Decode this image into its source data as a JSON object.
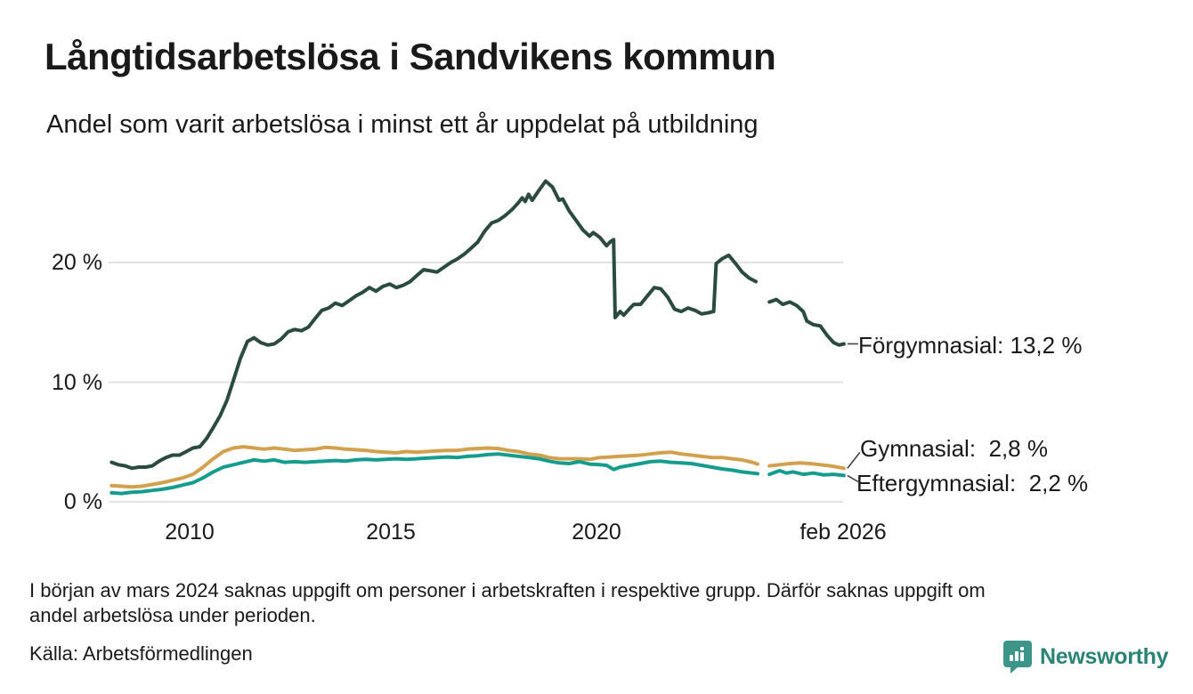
{
  "title": "Långtidsarbetslösa i Sandvikens kommun",
  "subtitle": "Andel som varit arbetslösa i minst ett år uppdelat på utbildning",
  "footnote_lines": [
    "I början av mars 2024 saknas uppgift om personer i arbetskraften i respektive grupp. Därför saknas uppgift om",
    "andel arbetslösa under perioden."
  ],
  "source": "Källa: Arbetsförmedlingen",
  "branding": {
    "logo_text": "Newsworthy",
    "logo_text_color": "#2B8276",
    "logo_icon_color": "#3D9488"
  },
  "colors": {
    "text": "#1a1a1a",
    "gridline": "#E2E2E2",
    "connector": "#444444",
    "background": "#ffffff"
  },
  "chart_data": {
    "type": "line",
    "title": "Långtidsarbetslösa i Sandvikens kommun",
    "subtitle": "Andel som varit arbetslösa i minst ett år uppdelat på utbildning",
    "xlabel": "",
    "ylabel": "",
    "unit": "%",
    "grid": "horizontal-only",
    "legend_position": "right-end-labels",
    "x_axis": {
      "ticks": [
        "2010",
        "2015",
        "2020",
        "feb 2026"
      ],
      "tick_years": [
        2010,
        2015,
        2020,
        2026.08
      ],
      "range_years": [
        2008.05,
        2026.1
      ]
    },
    "y_axis": {
      "ticks": [
        "20 %",
        "10 %",
        "0 %"
      ],
      "tick_values": [
        20,
        10,
        0
      ],
      "ylim": [
        0,
        27
      ]
    },
    "data_gap": {
      "start_year": 2023.97,
      "end_year": 2024.2,
      "reason": "saknas uppgift mars 2024"
    },
    "series": [
      {
        "name": "Förgymnasial",
        "label": "Förgymnasial: 13,2 %",
        "last_value": "13,2 %",
        "color": "#2B4B40",
        "points": [
          [
            2008.08,
            3.3
          ],
          [
            2008.25,
            3.1
          ],
          [
            2008.42,
            3.0
          ],
          [
            2008.58,
            2.8
          ],
          [
            2008.75,
            2.9
          ],
          [
            2008.92,
            2.9
          ],
          [
            2009.08,
            3.0
          ],
          [
            2009.25,
            3.4
          ],
          [
            2009.42,
            3.7
          ],
          [
            2009.58,
            3.9
          ],
          [
            2009.75,
            3.9
          ],
          [
            2009.92,
            4.2
          ],
          [
            2010.08,
            4.5
          ],
          [
            2010.25,
            4.6
          ],
          [
            2010.42,
            5.3
          ],
          [
            2010.58,
            6.2
          ],
          [
            2010.75,
            7.2
          ],
          [
            2010.92,
            8.5
          ],
          [
            2011.08,
            10.2
          ],
          [
            2011.25,
            12.0
          ],
          [
            2011.42,
            13.4
          ],
          [
            2011.58,
            13.7
          ],
          [
            2011.75,
            13.3
          ],
          [
            2011.92,
            13.1
          ],
          [
            2012.08,
            13.2
          ],
          [
            2012.25,
            13.6
          ],
          [
            2012.42,
            14.2
          ],
          [
            2012.58,
            14.4
          ],
          [
            2012.75,
            14.3
          ],
          [
            2012.92,
            14.6
          ],
          [
            2013.08,
            15.3
          ],
          [
            2013.25,
            16.0
          ],
          [
            2013.42,
            16.2
          ],
          [
            2013.58,
            16.6
          ],
          [
            2013.75,
            16.4
          ],
          [
            2013.92,
            16.8
          ],
          [
            2014.08,
            17.2
          ],
          [
            2014.25,
            17.5
          ],
          [
            2014.42,
            17.9
          ],
          [
            2014.58,
            17.6
          ],
          [
            2014.75,
            18.0
          ],
          [
            2014.92,
            18.2
          ],
          [
            2015.08,
            17.9
          ],
          [
            2015.25,
            18.1
          ],
          [
            2015.42,
            18.4
          ],
          [
            2015.58,
            18.9
          ],
          [
            2015.75,
            19.4
          ],
          [
            2015.92,
            19.3
          ],
          [
            2016.08,
            19.2
          ],
          [
            2016.25,
            19.6
          ],
          [
            2016.42,
            20.0
          ],
          [
            2016.58,
            20.3
          ],
          [
            2016.75,
            20.7
          ],
          [
            2016.92,
            21.2
          ],
          [
            2017.08,
            21.7
          ],
          [
            2017.25,
            22.6
          ],
          [
            2017.42,
            23.3
          ],
          [
            2017.58,
            23.5
          ],
          [
            2017.75,
            23.9
          ],
          [
            2017.92,
            24.4
          ],
          [
            2018.08,
            25.0
          ],
          [
            2018.17,
            25.4
          ],
          [
            2018.25,
            25.1
          ],
          [
            2018.33,
            25.7
          ],
          [
            2018.42,
            25.2
          ],
          [
            2018.58,
            26.0
          ],
          [
            2018.75,
            26.8
          ],
          [
            2018.92,
            26.3
          ],
          [
            2019.08,
            25.2
          ],
          [
            2019.17,
            25.3
          ],
          [
            2019.33,
            24.3
          ],
          [
            2019.5,
            23.5
          ],
          [
            2019.67,
            22.7
          ],
          [
            2019.83,
            22.2
          ],
          [
            2019.92,
            22.5
          ],
          [
            2020.08,
            22.1
          ],
          [
            2020.25,
            21.4
          ],
          [
            2020.33,
            21.7
          ],
          [
            2020.42,
            21.9
          ],
          [
            2020.46,
            15.4
          ],
          [
            2020.58,
            15.9
          ],
          [
            2020.67,
            15.6
          ],
          [
            2020.83,
            16.2
          ],
          [
            2020.92,
            16.5
          ],
          [
            2021.08,
            16.5
          ],
          [
            2021.25,
            17.2
          ],
          [
            2021.42,
            17.9
          ],
          [
            2021.58,
            17.8
          ],
          [
            2021.75,
            17.1
          ],
          [
            2021.92,
            16.1
          ],
          [
            2022.08,
            15.9
          ],
          [
            2022.25,
            16.2
          ],
          [
            2022.42,
            16.0
          ],
          [
            2022.58,
            15.7
          ],
          [
            2022.75,
            15.8
          ],
          [
            2022.88,
            15.9
          ],
          [
            2022.94,
            19.9
          ],
          [
            2023.08,
            20.3
          ],
          [
            2023.25,
            20.6
          ],
          [
            2023.42,
            19.9
          ],
          [
            2023.58,
            19.2
          ],
          [
            2023.75,
            18.7
          ],
          [
            2023.92,
            18.4
          ],
          [
            2024.08,
            null
          ],
          [
            2024.25,
            16.7
          ],
          [
            2024.42,
            16.9
          ],
          [
            2024.58,
            16.5
          ],
          [
            2024.75,
            16.7
          ],
          [
            2024.92,
            16.4
          ],
          [
            2025.08,
            15.9
          ],
          [
            2025.17,
            15.1
          ],
          [
            2025.33,
            14.8
          ],
          [
            2025.5,
            14.7
          ],
          [
            2025.67,
            13.9
          ],
          [
            2025.83,
            13.3
          ],
          [
            2025.96,
            13.1
          ],
          [
            2026.08,
            13.2
          ]
        ]
      },
      {
        "name": "Gymnasial",
        "label": "Gymnasial:  2,8 %",
        "last_value": "2,8 %",
        "color": "#D2A14F",
        "points": [
          [
            2008.08,
            1.35
          ],
          [
            2008.33,
            1.3
          ],
          [
            2008.58,
            1.25
          ],
          [
            2008.83,
            1.3
          ],
          [
            2009.08,
            1.45
          ],
          [
            2009.33,
            1.6
          ],
          [
            2009.58,
            1.8
          ],
          [
            2009.83,
            2.0
          ],
          [
            2010.08,
            2.3
          ],
          [
            2010.33,
            2.9
          ],
          [
            2010.58,
            3.6
          ],
          [
            2010.83,
            4.2
          ],
          [
            2011.08,
            4.5
          ],
          [
            2011.33,
            4.6
          ],
          [
            2011.58,
            4.5
          ],
          [
            2011.83,
            4.4
          ],
          [
            2012.08,
            4.5
          ],
          [
            2012.33,
            4.4
          ],
          [
            2012.58,
            4.3
          ],
          [
            2012.83,
            4.35
          ],
          [
            2013.08,
            4.4
          ],
          [
            2013.33,
            4.55
          ],
          [
            2013.58,
            4.5
          ],
          [
            2013.83,
            4.4
          ],
          [
            2014.08,
            4.35
          ],
          [
            2014.33,
            4.3
          ],
          [
            2014.58,
            4.2
          ],
          [
            2014.83,
            4.15
          ],
          [
            2015.08,
            4.1
          ],
          [
            2015.33,
            4.2
          ],
          [
            2015.58,
            4.15
          ],
          [
            2015.83,
            4.2
          ],
          [
            2016.08,
            4.25
          ],
          [
            2016.33,
            4.3
          ],
          [
            2016.58,
            4.3
          ],
          [
            2016.83,
            4.4
          ],
          [
            2017.08,
            4.45
          ],
          [
            2017.33,
            4.5
          ],
          [
            2017.58,
            4.45
          ],
          [
            2017.83,
            4.3
          ],
          [
            2018.08,
            4.2
          ],
          [
            2018.33,
            4.0
          ],
          [
            2018.58,
            3.9
          ],
          [
            2018.83,
            3.7
          ],
          [
            2019.08,
            3.6
          ],
          [
            2019.33,
            3.6
          ],
          [
            2019.58,
            3.6
          ],
          [
            2019.83,
            3.55
          ],
          [
            2020.08,
            3.7
          ],
          [
            2020.33,
            3.75
          ],
          [
            2020.58,
            3.8
          ],
          [
            2020.83,
            3.85
          ],
          [
            2021.08,
            3.9
          ],
          [
            2021.33,
            4.0
          ],
          [
            2021.58,
            4.1
          ],
          [
            2021.83,
            4.15
          ],
          [
            2022.08,
            4.0
          ],
          [
            2022.33,
            3.9
          ],
          [
            2022.58,
            3.8
          ],
          [
            2022.83,
            3.7
          ],
          [
            2023.08,
            3.7
          ],
          [
            2023.33,
            3.6
          ],
          [
            2023.58,
            3.5
          ],
          [
            2023.83,
            3.3
          ],
          [
            2023.96,
            3.15
          ],
          [
            2024.08,
            null
          ],
          [
            2024.25,
            3.0
          ],
          [
            2024.5,
            3.1
          ],
          [
            2024.75,
            3.2
          ],
          [
            2025.0,
            3.25
          ],
          [
            2025.25,
            3.2
          ],
          [
            2025.5,
            3.1
          ],
          [
            2025.75,
            3.0
          ],
          [
            2026.08,
            2.8
          ]
        ]
      },
      {
        "name": "Eftergymnasial",
        "label": "Eftergymnasial:  2,2 %",
        "last_value": "2,2 %",
        "color": "#169C8D",
        "points": [
          [
            2008.08,
            0.75
          ],
          [
            2008.33,
            0.7
          ],
          [
            2008.58,
            0.8
          ],
          [
            2008.83,
            0.85
          ],
          [
            2009.08,
            0.95
          ],
          [
            2009.33,
            1.05
          ],
          [
            2009.58,
            1.2
          ],
          [
            2009.83,
            1.4
          ],
          [
            2010.08,
            1.6
          ],
          [
            2010.33,
            2.0
          ],
          [
            2010.58,
            2.5
          ],
          [
            2010.83,
            2.9
          ],
          [
            2011.08,
            3.1
          ],
          [
            2011.33,
            3.3
          ],
          [
            2011.58,
            3.5
          ],
          [
            2011.83,
            3.4
          ],
          [
            2012.08,
            3.5
          ],
          [
            2012.33,
            3.3
          ],
          [
            2012.58,
            3.35
          ],
          [
            2012.83,
            3.3
          ],
          [
            2013.08,
            3.35
          ],
          [
            2013.33,
            3.4
          ],
          [
            2013.58,
            3.45
          ],
          [
            2013.83,
            3.4
          ],
          [
            2014.08,
            3.5
          ],
          [
            2014.33,
            3.55
          ],
          [
            2014.58,
            3.5
          ],
          [
            2014.83,
            3.55
          ],
          [
            2015.08,
            3.6
          ],
          [
            2015.33,
            3.55
          ],
          [
            2015.58,
            3.6
          ],
          [
            2015.83,
            3.65
          ],
          [
            2016.08,
            3.7
          ],
          [
            2016.33,
            3.75
          ],
          [
            2016.58,
            3.7
          ],
          [
            2016.83,
            3.8
          ],
          [
            2017.08,
            3.85
          ],
          [
            2017.33,
            3.95
          ],
          [
            2017.58,
            4.0
          ],
          [
            2017.83,
            3.9
          ],
          [
            2018.08,
            3.8
          ],
          [
            2018.33,
            3.7
          ],
          [
            2018.58,
            3.6
          ],
          [
            2018.83,
            3.4
          ],
          [
            2019.08,
            3.25
          ],
          [
            2019.33,
            3.2
          ],
          [
            2019.58,
            3.35
          ],
          [
            2019.83,
            3.15
          ],
          [
            2020.08,
            3.1
          ],
          [
            2020.25,
            3.05
          ],
          [
            2020.42,
            2.7
          ],
          [
            2020.58,
            2.9
          ],
          [
            2020.83,
            3.05
          ],
          [
            2021.08,
            3.2
          ],
          [
            2021.33,
            3.35
          ],
          [
            2021.58,
            3.4
          ],
          [
            2021.83,
            3.3
          ],
          [
            2022.08,
            3.25
          ],
          [
            2022.33,
            3.2
          ],
          [
            2022.58,
            3.05
          ],
          [
            2022.83,
            2.9
          ],
          [
            2023.08,
            2.75
          ],
          [
            2023.33,
            2.65
          ],
          [
            2023.58,
            2.5
          ],
          [
            2023.83,
            2.4
          ],
          [
            2023.96,
            2.35
          ],
          [
            2024.08,
            null
          ],
          [
            2024.25,
            2.3
          ],
          [
            2024.5,
            2.6
          ],
          [
            2024.67,
            2.4
          ],
          [
            2024.83,
            2.5
          ],
          [
            2025.08,
            2.3
          ],
          [
            2025.33,
            2.4
          ],
          [
            2025.58,
            2.25
          ],
          [
            2025.83,
            2.3
          ],
          [
            2026.08,
            2.2
          ]
        ]
      }
    ]
  }
}
